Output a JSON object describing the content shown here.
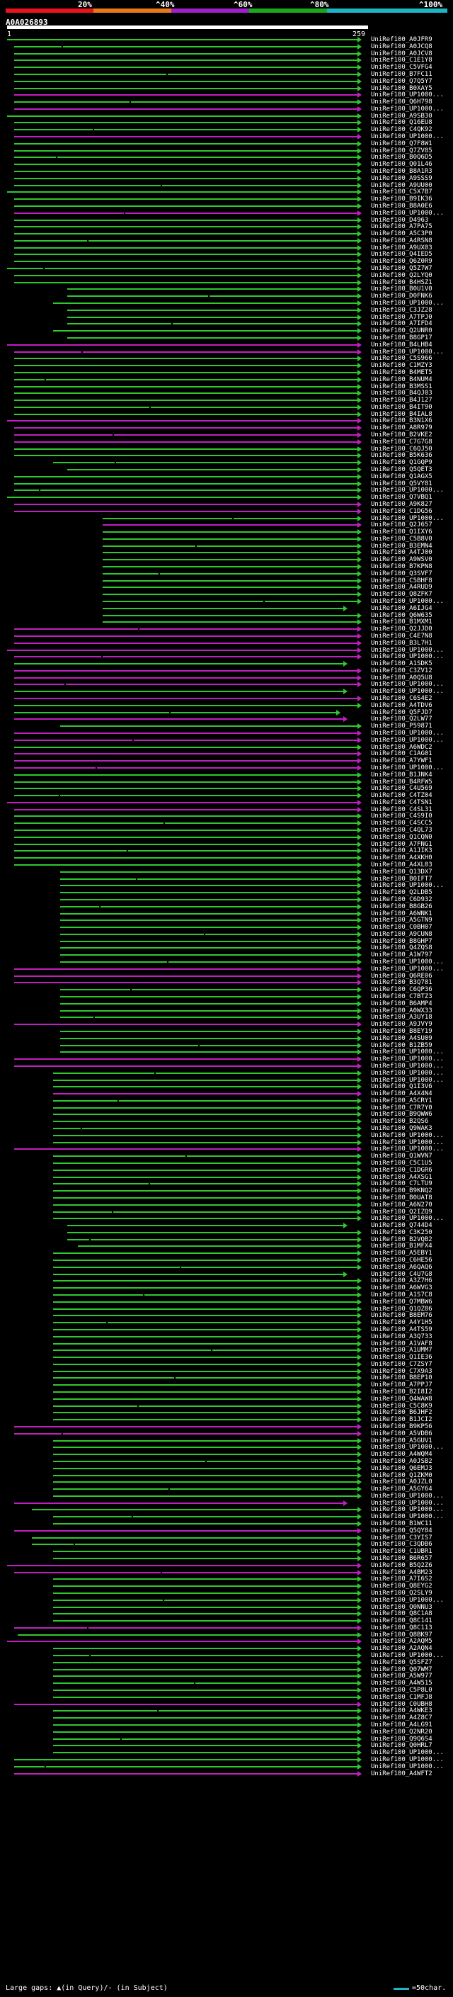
{
  "header": {
    "pct_labels": [
      "20%",
      "^40%",
      "^60%",
      "^80%",
      "^100%"
    ],
    "bar_colors": [
      "#e8141c",
      "#e87818",
      "#a020c8",
      "#1ca81c",
      "#1fb4c4"
    ],
    "query_name": "A0A026893",
    "scale_min": "1",
    "scale_max": "259"
  },
  "colors": {
    "green": "#2fc82f",
    "magenta": "#c020c0",
    "teal": "#1fb4c4",
    "label": "#ffffff"
  },
  "hits_text": "UniRef100_A0JFR9\nUniRef100_A0JCQ8\nUniRef100_A0JCV8\nUniRef100_C1E1Y8\nUniRef100_C5VFG4\nUniRef100_B7FC11\nUniRef100_Q7Q5Y7\nUniRef100_B0XAY5\nUniRef100_UP1000...\nUniRef100_Q6H798\nUniRef100_UP1000...\nUniRef100_A9SB30\nUniRef100_Q16EU8\nUniRef100_C4QK92\nUniRef100_UP1000...\nUniRef100_Q7F8W1\nUniRef100_Q7ZV85\nUniRef100_B0Q6D5\nUniRef100_Q01L46\nUniRef100_B8A1R3\nUniRef100_A9SSS9\nUniRef100_A9UU00\nUniRef100_C5X7B7\nUniRef100_B9IK36\nUniRef100_B8A0E6\nUniRef100_UP1000...\nUniRef100_D4963\nUniRef100_A7PA75\nUniRef100_A5C3P0\nUniRef100_A4RSN8\nUniRef100_A9UX03\nUniRef100_Q4IED5\nUniRef100_Q6Z0R9\nUniRef100_Q5Z7W7\nUniRef100_Q2LYQ0\nUniRef100_B4HSZ1\nUniRef100_B0U1V0\nUniRef100_D0FNK6\nUniRef100_UP1000...\nUniRef100_C3JZ28\nUniRef100_A7TPJ0\nUniRef100_A7IFD4\nUniRef100_Q2UNR0\nUniRef100_B8GP17\nUniRef100_B4LHB4\nUniRef100_UP1000...\nUniRef100_C5S966\nUniRef100_C1MZY3\nUniRef100_B4MET5\nUniRef100_B4NUM4\nUniRef100_B3MSS1\nUniRef100_B4QJ03\nUniRef100_B4J127\nUniRef100_B4IT90\nUniRef100_B4IAL8\nUniRef100_B3N1X6\nUniRef100_A8R979\nUniRef100_B2VKE2\nUniRef100_C7G7G8\nUniRef100_C6QJ50\nUniRef100_B5K636\nUniRef100_Q1GQP9\nUniRef100_Q5QET3\nUniRef100_Q1AGX5\nUniRef100_Q5VY81\nUniRef100_UP1000...\nUniRef100_Q7VBQ1\nUniRef100_A9K827\nUniRef100_C1DG56\nUniRef100_UP1000...\nUniRef100_Q2J657\nUniRef100_Q1IXY6\nUniRef100_C5B8V0\nUniRef100_B3EMN4\nUniRef100_A4TJ00\nUniRef100_A9WSV0\nUniRef100_B7KPN8\nUniRef100_Q3SVF7\nUniRef100_C5BHF8\nUniRef100_A4RUD9\nUniRef100_Q8ZFK7\nUniRef100_UP1000...\nUniRef100_A6IJG4\nUniRef100_Q6W635\nUniRef100_B1MXM1\nUniRef100_Q2JJD0\nUniRef100_C4E7N8\nUniRef100_B3L7H1\nUniRef100_UP1000...\nUniRef100_UP1000...\nUniRef100_A1SDK5\nUniRef100_C3ZV12\nUniRef100_A0Q5U8\nUniRef100_UP1000...\nUniRef100_UP1000...\nUniRef100_C6S4E2\nUniRef100_A4TDV6\nUniRef100_Q5FJD7\nUniRef100_Q2LW77\nUniRef100_P59871\nUniRef100_UP1000...\nUniRef100_UP1000...\nUniRef100_A6WDC2\nUniRef100_C1AG01\nUniRef100_A7YWF1\nUniRef100_UP1000...\nUniRef100_B1JNK4\nUniRef100_B4RFW5\nUniRef100_C4U569\nUniRef100_C4TZ04\nUniRef100_C4TSN1\nUniRef100_C4SL31\nUniRef100_C4S9I0\nUniRef100_C4SCC5\nUniRef100_C4QL73\nUniRef100_Q1CQN0\nUniRef100_A7FNG1\nUniRef100_A1JIK3\nUniRef100_A4XKH0\nUniRef100_A4XL03\nUniRef100_Q13DX7\nUniRef100_B0IFT7\nUniRef100_UP1000...\nUniRef100_Q2LDB5\nUniRef100_C6D932\nUniRef100_B8GB26\nUniRef100_A6WNK1\nUniRef100_A5GTN9\nUniRef100_C0BH07\nUniRef100_A9CUN8\nUniRef100_B8GHP7\nUniRef100_Q4ZQS8\nUniRef100_A1W797\nUniRef100_UP1000...\nUniRef100_UP1000...\nUniRef100_Q6RE06\nUniRef100_B3Q781\nUniRef100_C6QP36\nUniRef100_C7BTZ3\nUniRef100_B6AMP4\nUniRef100_A0WX33\nUniRef100_A3UY18\nUniRef100_A9JVY9\nUniRef100_B8EY19\nUniRef100_A4SU09\nUniRef100_B1ZB59\nUniRef100_UP1000...\nUniRef100_UP1000...\nUniRef100_UP1000...\nUniRef100_UP1000...\nUniRef100_UP1000...\nUniRef100_Q1I3V6\nUniRef100_A4X4N4\nUniRef100_A5CRY1\nUniRef100_C7R7Y0\nUniRef100_B9QWW6\nUniRef100_B2QS6\nUniRef100_Q9WAK3\nUniRef100_UP1000...\nUniRef100_UP1000...\nUniRef100_UP1000...\nUniRef100_Q1WVN7\nUniRef100_C5C1U5\nUniRef100_C1DGR6\nUniRef100_A4XSG1\nUniRef100_C7LTU9\nUniRef100_B9KNQ2\nUniRef100_B0UAT8\nUniRef100_A6N270\nUniRef100_Q2IZQ9\nUniRef100_UP1000...\nUniRef100_Q744D4\nUniRef100_C3K250\nUniRef100_B2VQB2\nUniRef100_B1MFX4\nUniRef100_A5EBY1\nUniRef100_C6HE56\nUniRef100_A6QAQ6\nUniRef100_C4U7G8\nUniRef100_A3Z7H6\nUniRef100_A6WVG3\nUniRef100_A1S7C8\nUniRef100_Q7MBW6\nUniRef100_Q1QZ86\nUniRef100_B8EM76\nUniRef100_A4Y1H5\nUniRef100_A4TS59\nUniRef100_A3Q733\nUniRef100_A1VAF8\nUniRef100_A1UMM7\nUniRef100_Q1IE36\nUniRef100_C7ZSY7\nUniRef100_C7X9A3\nUniRef100_B8EP10\nUniRef100_A7PPJ7\nUniRef100_B2I8I2\nUniRef100_Q4WAW8\nUniRef100_C5C8K9\nUniRef100_B6JHF2\nUniRef100_B1JCI2\nUniRef100_B9KP56\nUniRef100_A5VDB6\nUniRef100_A5GUV1\nUniRef100_UP1000...\nUniRef100_A4WQM4\nUniRef100_A0JSB2\nUniRef100_Q6EMJ3\nUniRef100_Q1ZKM0\nUniRef100_A0JZL0\nUniRef100_A5GY64\nUniRef100_UP1000...\nUniRef100_UP1000...\nUniRef100_UP1000...\nUniRef100_UP1000...\nUniRef100_B1WC11\nUniRef100_Q5QY84\nUniRef100_C3YIS7\nUniRef100_C3QDB6\nUniRef100_C1UBR1\nUniRef100_B6R657\nUniRef100_B5Q2Z6\nUniRef100_A4BM23\nUniRef100_A7I6S2\nUniRef100_Q8EYG2\nUniRef100_Q2SLY9\nUniRef100_UP1000...\nUniRef100_Q0NNU3\nUniRef100_Q8C1A8\nUniRef100_Q8C141\nUniRef100_Q8C113\nUniRef100_Q8BK97\nUniRef100_A2AQM5\nUniRef100_A2AQN4\nUniRef100_UP1000...\nUniRef100_Q5SFZ7\nUniRef100_Q07WM7\nUniRef100_A5W977\nUniRef100_A4W515\nUniRef100_C5P8L0\nUniRef100_C1MFJ8\nUniRef100_C0UBH8\nUniRef100_A4WKE3\nUniRef100_A4Z8C7\nUniRef100_A4LG91\nUniRef100_Q2NR20\nUniRef100_Q9Q6S4\nUniRef100_Q0HRL7\nUniRef100_UP1000...\nUniRef100_UP1000...\nUniRef100_UP1000...\nUniRef100_A4WFT2",
  "footer": {
    "large_gaps": "Large gaps: ▲(in Query)/- (in Subject)",
    "legend": "=50char."
  }
}
